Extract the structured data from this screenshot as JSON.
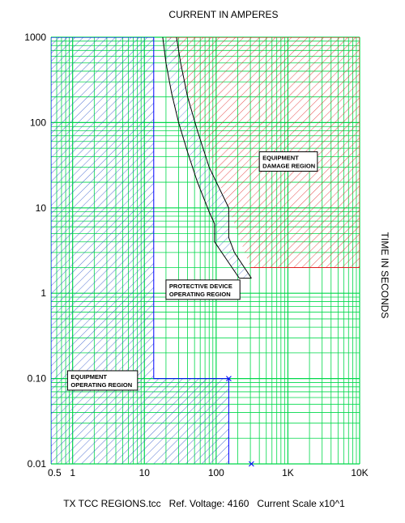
{
  "chart_data": {
    "type": "line",
    "title": "CURRENT IN AMPERES",
    "xlabel": "CURRENT IN AMPERES",
    "ylabel": "TIME IN SECONDS",
    "x_scale": "log",
    "y_scale": "log",
    "xlim": [
      0.5,
      10000
    ],
    "ylim": [
      0.01,
      1000
    ],
    "x_ticks": [
      {
        "value": 0.5,
        "label": "0.5"
      },
      {
        "value": 1,
        "label": "1"
      },
      {
        "value": 10,
        "label": "10"
      },
      {
        "value": 100,
        "label": "100"
      },
      {
        "value": 1000,
        "label": "1K"
      },
      {
        "value": 10000,
        "label": "10K"
      }
    ],
    "y_ticks": [
      {
        "value": 1000,
        "label": "1000"
      },
      {
        "value": 100,
        "label": "100"
      },
      {
        "value": 10,
        "label": "10"
      },
      {
        "value": 1,
        "label": "1"
      },
      {
        "value": 0.1,
        "label": "0.10"
      },
      {
        "value": 0.01,
        "label": "0.01"
      }
    ],
    "grid": true,
    "grid_color": "#00d84a",
    "footer": "TX TCC REGIONS.tcc   Ref. Voltage: 4160   Current Scale x10^1",
    "regions": [
      {
        "label": "EQUIPMENT OPERATING REGION",
        "label_lines": [
          "EQUIPMENT",
          "OPERATING REGION"
        ],
        "color": "#0000ff",
        "hatch": "#2850c8",
        "boundary": [
          [
            0.5,
            0.01
          ],
          [
            0.5,
            1000
          ],
          [
            13.5,
            1000
          ],
          [
            13.5,
            0.1
          ],
          [
            150,
            0.1
          ],
          [
            150,
            0.01
          ]
        ],
        "label_anchor": [
          0.85,
          0.095
        ]
      },
      {
        "label": "PROTECTIVE DEVICE OPERATING REGION",
        "label_lines": [
          "PROTECTIVE DEVICE",
          "OPERATING REGION"
        ],
        "color": "#000000",
        "hatch": "#2850c8",
        "label_anchor": [
          20,
          1.1
        ]
      },
      {
        "label": "EQUIPMENT DAMAGE REGION",
        "label_lines": [
          "EQUIPMENT",
          "DAMAGE REGION"
        ],
        "color": "#e02020",
        "hatch": "#e02020",
        "boundary": [
          [
            20,
            1000
          ],
          [
            10000,
            1000
          ],
          [
            10000,
            2
          ],
          [
            300,
            2
          ]
        ],
        "label_anchor": [
          400,
          35
        ]
      }
    ],
    "series": [
      {
        "color": "#000000",
        "x": [
          18,
          20,
          24,
          30,
          40,
          55,
          80,
          95,
          95,
          120,
          210
        ],
        "y": [
          1000,
          500,
          220,
          100,
          45,
          20,
          9,
          6.5,
          4,
          3,
          1.5
        ]
      },
      {
        "color": "#000000",
        "x": [
          28,
          32,
          40,
          55,
          80,
          150,
          150,
          180,
          310
        ],
        "y": [
          1000,
          500,
          200,
          80,
          30,
          10,
          4.5,
          3,
          1.5
        ]
      }
    ],
    "markers": [
      {
        "x": 150,
        "y": 0.1,
        "symbol": "x"
      },
      {
        "x": 310,
        "y": 0.01,
        "symbol": "x"
      }
    ]
  }
}
